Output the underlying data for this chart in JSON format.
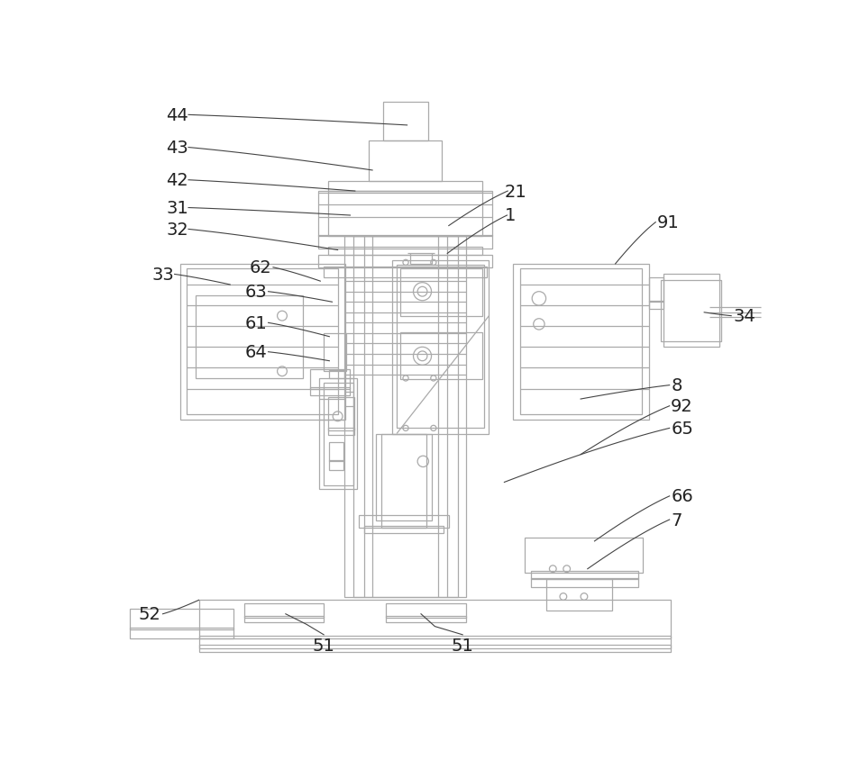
{
  "bg_color": "#ffffff",
  "line_color": "#aaaaaa",
  "line_width": 0.9,
  "fig_width": 9.45,
  "fig_height": 8.45
}
